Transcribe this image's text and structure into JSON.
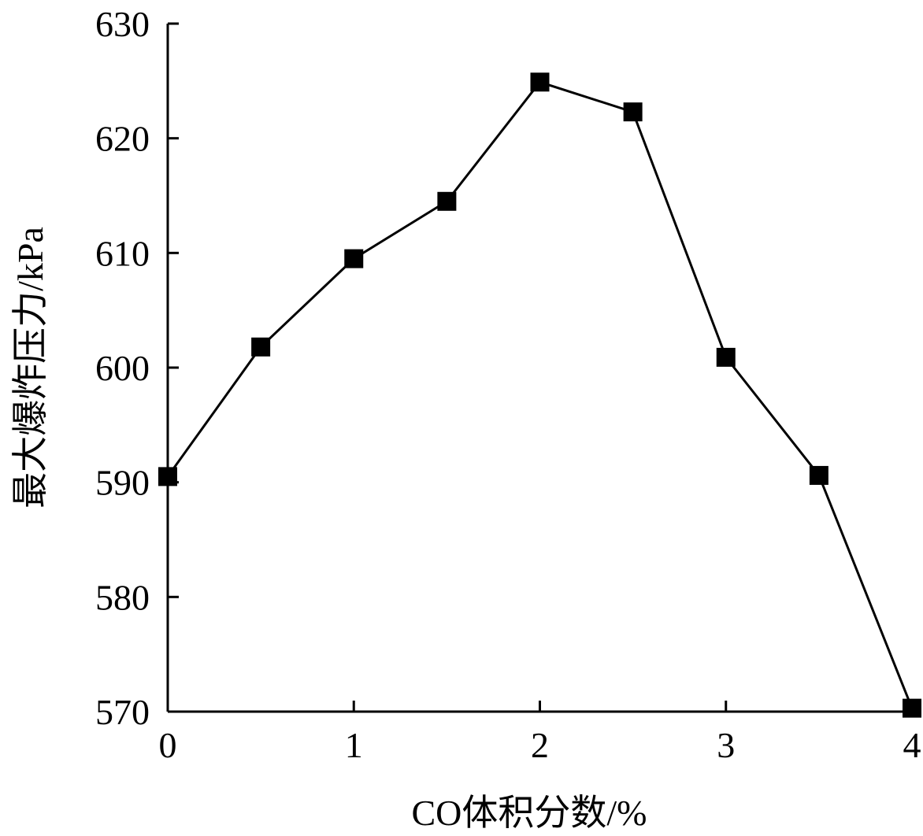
{
  "chart_data": {
    "type": "line",
    "xlabel": "CO体积分数/%",
    "ylabel": "最大爆炸压力/kPa",
    "xlim": [
      0,
      4
    ],
    "ylim": [
      570,
      630
    ],
    "x_ticks": [
      0,
      1,
      2,
      3,
      4
    ],
    "y_ticks": [
      570,
      580,
      590,
      600,
      610,
      620,
      630
    ],
    "grid": false,
    "marker": "square",
    "series": [
      {
        "x": [
          0,
          0.5,
          1.0,
          1.5,
          2.0,
          2.5,
          3.0,
          3.5,
          4.0
        ],
        "values": [
          590.5,
          601.8,
          609.5,
          614.5,
          624.9,
          622.3,
          600.9,
          590.6,
          570.3
        ]
      }
    ],
    "colors": {
      "line": "#000000",
      "marker": "#000000"
    }
  }
}
